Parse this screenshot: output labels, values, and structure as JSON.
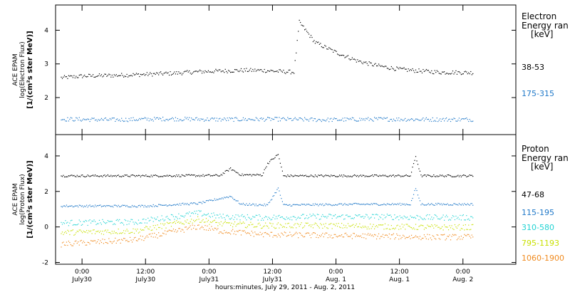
{
  "chart_data": [
    {
      "type": "scatter",
      "panel": "electron",
      "ylabel": [
        "ACE EPAM",
        "log(Electron Flux)",
        "[1/(cm²s ster MeV)]"
      ],
      "ylim": [
        0.9,
        4.75
      ],
      "yticks": [
        2,
        3,
        4
      ],
      "legend_title": [
        "Electron",
        "Energy ran",
        "[keV]"
      ],
      "series": [
        {
          "name": "38-53",
          "color": "#000000",
          "x": [
            -4,
            0,
            6,
            12,
            18,
            22,
            26,
            30,
            34,
            38,
            40,
            41,
            44,
            48,
            52,
            56,
            60,
            64,
            68,
            70,
            74
          ],
          "y": [
            2.6,
            2.65,
            2.67,
            2.7,
            2.74,
            2.78,
            2.8,
            2.82,
            2.82,
            2.78,
            2.77,
            4.25,
            3.65,
            3.35,
            3.1,
            2.95,
            2.85,
            2.8,
            2.76,
            2.76,
            2.75
          ]
        },
        {
          "name": "175-315",
          "color": "#1f78c8",
          "x": [
            -4,
            6,
            16,
            26,
            36,
            46,
            56,
            66,
            74
          ],
          "y": [
            1.37,
            1.35,
            1.38,
            1.36,
            1.37,
            1.35,
            1.37,
            1.36,
            1.36
          ]
        }
      ]
    },
    {
      "type": "scatter",
      "panel": "proton",
      "ylabel": [
        "ACE EPAM",
        "log(Proton Flux)",
        "[1/(cm²s ster MeV)]"
      ],
      "ylim": [
        -2.1,
        5.2
      ],
      "yticks": [
        -2,
        0,
        2,
        4
      ],
      "legend_title": [
        "Proton",
        "Energy ran",
        "[keV]"
      ],
      "series": [
        {
          "name": "47-68",
          "color": "#000000",
          "x": [
            -4,
            12,
            26,
            28,
            30,
            34,
            35,
            37,
            38,
            52,
            62,
            63,
            64,
            74
          ],
          "y": [
            2.9,
            2.9,
            2.92,
            3.3,
            2.95,
            2.95,
            3.6,
            4.1,
            2.9,
            2.9,
            2.9,
            4.0,
            2.9,
            2.9
          ]
        },
        {
          "name": "115-195",
          "color": "#1f78c8",
          "x": [
            -4,
            12,
            22,
            28,
            30,
            35,
            37,
            38,
            52,
            62,
            63,
            64,
            74
          ],
          "y": [
            1.2,
            1.2,
            1.35,
            1.75,
            1.3,
            1.25,
            2.2,
            1.25,
            1.3,
            1.3,
            2.2,
            1.3,
            1.3
          ]
        },
        {
          "name": "310-580",
          "color": "#22d3d3",
          "x": [
            -4,
            10,
            22,
            26,
            34,
            44,
            56,
            66,
            74
          ],
          "y": [
            0.25,
            0.3,
            0.8,
            0.6,
            0.55,
            0.6,
            0.6,
            0.55,
            0.55
          ]
        },
        {
          "name": "795-1193",
          "color": "#c8e000",
          "x": [
            -4,
            10,
            22,
            26,
            34,
            44,
            56,
            66,
            74
          ],
          "y": [
            -0.3,
            -0.2,
            0.45,
            0.2,
            0.1,
            0.1,
            0.05,
            0.0,
            0.0
          ]
        },
        {
          "name": "1060-1900",
          "color": "#f08a1e",
          "x": [
            -4,
            10,
            22,
            26,
            34,
            44,
            56,
            66,
            74
          ],
          "y": [
            -0.95,
            -0.7,
            0.05,
            -0.2,
            -0.4,
            -0.45,
            -0.5,
            -0.55,
            -0.55
          ]
        }
      ]
    }
  ],
  "x_axis": {
    "xlim": [
      -5,
      82
    ],
    "title": "hours:minutes, July 29, 2011 - Aug. 2, 2011",
    "ticks": [
      {
        "x": 0,
        "time": "0:00",
        "date": "July30"
      },
      {
        "x": 12,
        "time": "12:00",
        "date": "July30"
      },
      {
        "x": 24,
        "time": "0:00",
        "date": "July31"
      },
      {
        "x": 36,
        "time": "12:00",
        "date": "July31"
      },
      {
        "x": 48,
        "time": "0:00",
        "date": "Aug. 1"
      },
      {
        "x": 60,
        "time": "12:00",
        "date": "Aug. 1"
      },
      {
        "x": 72,
        "time": "0:00",
        "date": "Aug. 2"
      }
    ]
  }
}
